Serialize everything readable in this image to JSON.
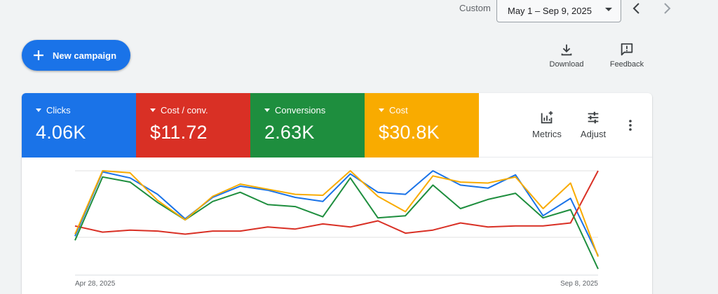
{
  "header": {
    "custom_label": "Custom",
    "date_range": "May 1 – Sep 9, 2025",
    "prev_icon": "chevron-left-icon",
    "next_icon": "chevron-right-icon"
  },
  "actions": {
    "new_campaign_label": "New campaign",
    "download_label": "Download",
    "feedback_label": "Feedback"
  },
  "metrics": [
    {
      "label": "Clicks",
      "value": "4.06K",
      "color": "#1a73e8"
    },
    {
      "label": "Cost / conv.",
      "value": "$11.72",
      "color": "#d93025"
    },
    {
      "label": "Conversions",
      "value": "2.63K",
      "color": "#1e8e3e"
    },
    {
      "label": "Cost",
      "value": "$30.8K",
      "color": "#f9ab00"
    }
  ],
  "controls": {
    "metrics_label": "Metrics",
    "adjust_label": "Adjust"
  },
  "chart_data": {
    "type": "line",
    "x_start_label": "Apr 28, 2025",
    "x_end_label": "Sep 8, 2025",
    "ylim": [
      0,
      1
    ],
    "grid": true,
    "series": [
      {
        "color": "#1a73e8",
        "values": [
          0.36,
          0.99,
          0.93,
          0.77,
          0.53,
          0.74,
          0.85,
          0.81,
          0.74,
          0.7,
          0.97,
          0.79,
          0.77,
          1.0,
          0.86,
          0.83,
          0.96,
          0.56,
          0.73,
          0.17
        ]
      },
      {
        "color": "#d93025",
        "values": [
          0.46,
          0.4,
          0.42,
          0.41,
          0.38,
          0.41,
          0.41,
          0.45,
          0.43,
          0.48,
          0.45,
          0.51,
          0.39,
          0.42,
          0.49,
          0.45,
          0.46,
          0.46,
          0.49,
          1.0
        ]
      },
      {
        "color": "#1e8e3e",
        "values": [
          0.32,
          0.94,
          0.89,
          0.69,
          0.52,
          0.7,
          0.79,
          0.67,
          0.65,
          0.55,
          0.93,
          0.54,
          0.56,
          0.86,
          0.63,
          0.72,
          0.78,
          0.54,
          0.62,
          0.04
        ]
      },
      {
        "color": "#f9ab00",
        "values": [
          0.38,
          1.0,
          0.98,
          0.71,
          0.52,
          0.75,
          0.87,
          0.82,
          0.77,
          0.76,
          1.0,
          0.75,
          0.6,
          0.95,
          0.89,
          0.88,
          0.94,
          0.63,
          0.88,
          0.16
        ]
      }
    ]
  }
}
